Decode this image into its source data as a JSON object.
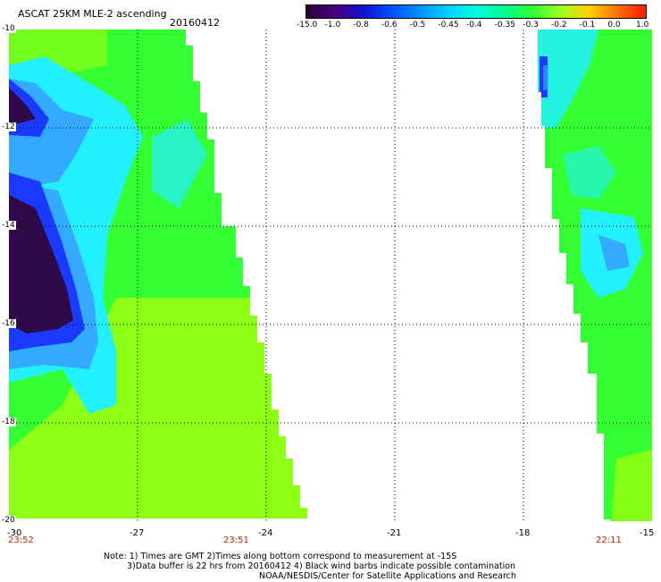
{
  "header": {
    "title": "ASCAT 25KM MLE-2 ascending",
    "date": "20160412"
  },
  "colorbar": {
    "ticks": [
      "-15.0",
      "-1.0",
      "-0.8",
      "-0.6",
      "-0.5",
      "-0.45",
      "-0.4",
      "-0.35",
      "-0.3",
      "-0.2",
      "-0.1",
      "0.0",
      "1.0"
    ],
    "colors": [
      "#2a0038",
      "#4a007a",
      "#1010d0",
      "#0050ff",
      "#0090ff",
      "#00d0ff",
      "#00ffe0",
      "#00ff90",
      "#30ff30",
      "#a0ff20",
      "#ffd000",
      "#ff7000",
      "#ff1a00"
    ]
  },
  "map": {
    "x_axis_labels": [
      "-30",
      "-27",
      "-24",
      "-21",
      "-18",
      "-15"
    ],
    "x_range": [
      -30,
      -15
    ],
    "y_axis_labels": [
      "-10",
      "-12",
      "-14",
      "-16",
      "-18",
      "-20"
    ],
    "y_range": [
      -10,
      -20
    ],
    "grid": true,
    "pass_times": [
      "23:52",
      "23:51",
      "22:11"
    ],
    "palette": {
      "dark": "#2e0a4a",
      "blue": "#1a3aff",
      "light_blue": "#33aaff",
      "cyan": "#22f0ff",
      "green": "#33ff33",
      "lime": "#9cff10",
      "time_label": "#cc2200"
    }
  },
  "notes": {
    "line1": "Note: 1) Times are GMT 2)Times along bottom correspond to measurement at -15S",
    "line2": "3)Data buffer is 22 hrs from 20160412 4) Black wind barbs indicate possible contamination",
    "line3": "NOAA/NESDIS/Center for Satellite Applications and Research"
  }
}
